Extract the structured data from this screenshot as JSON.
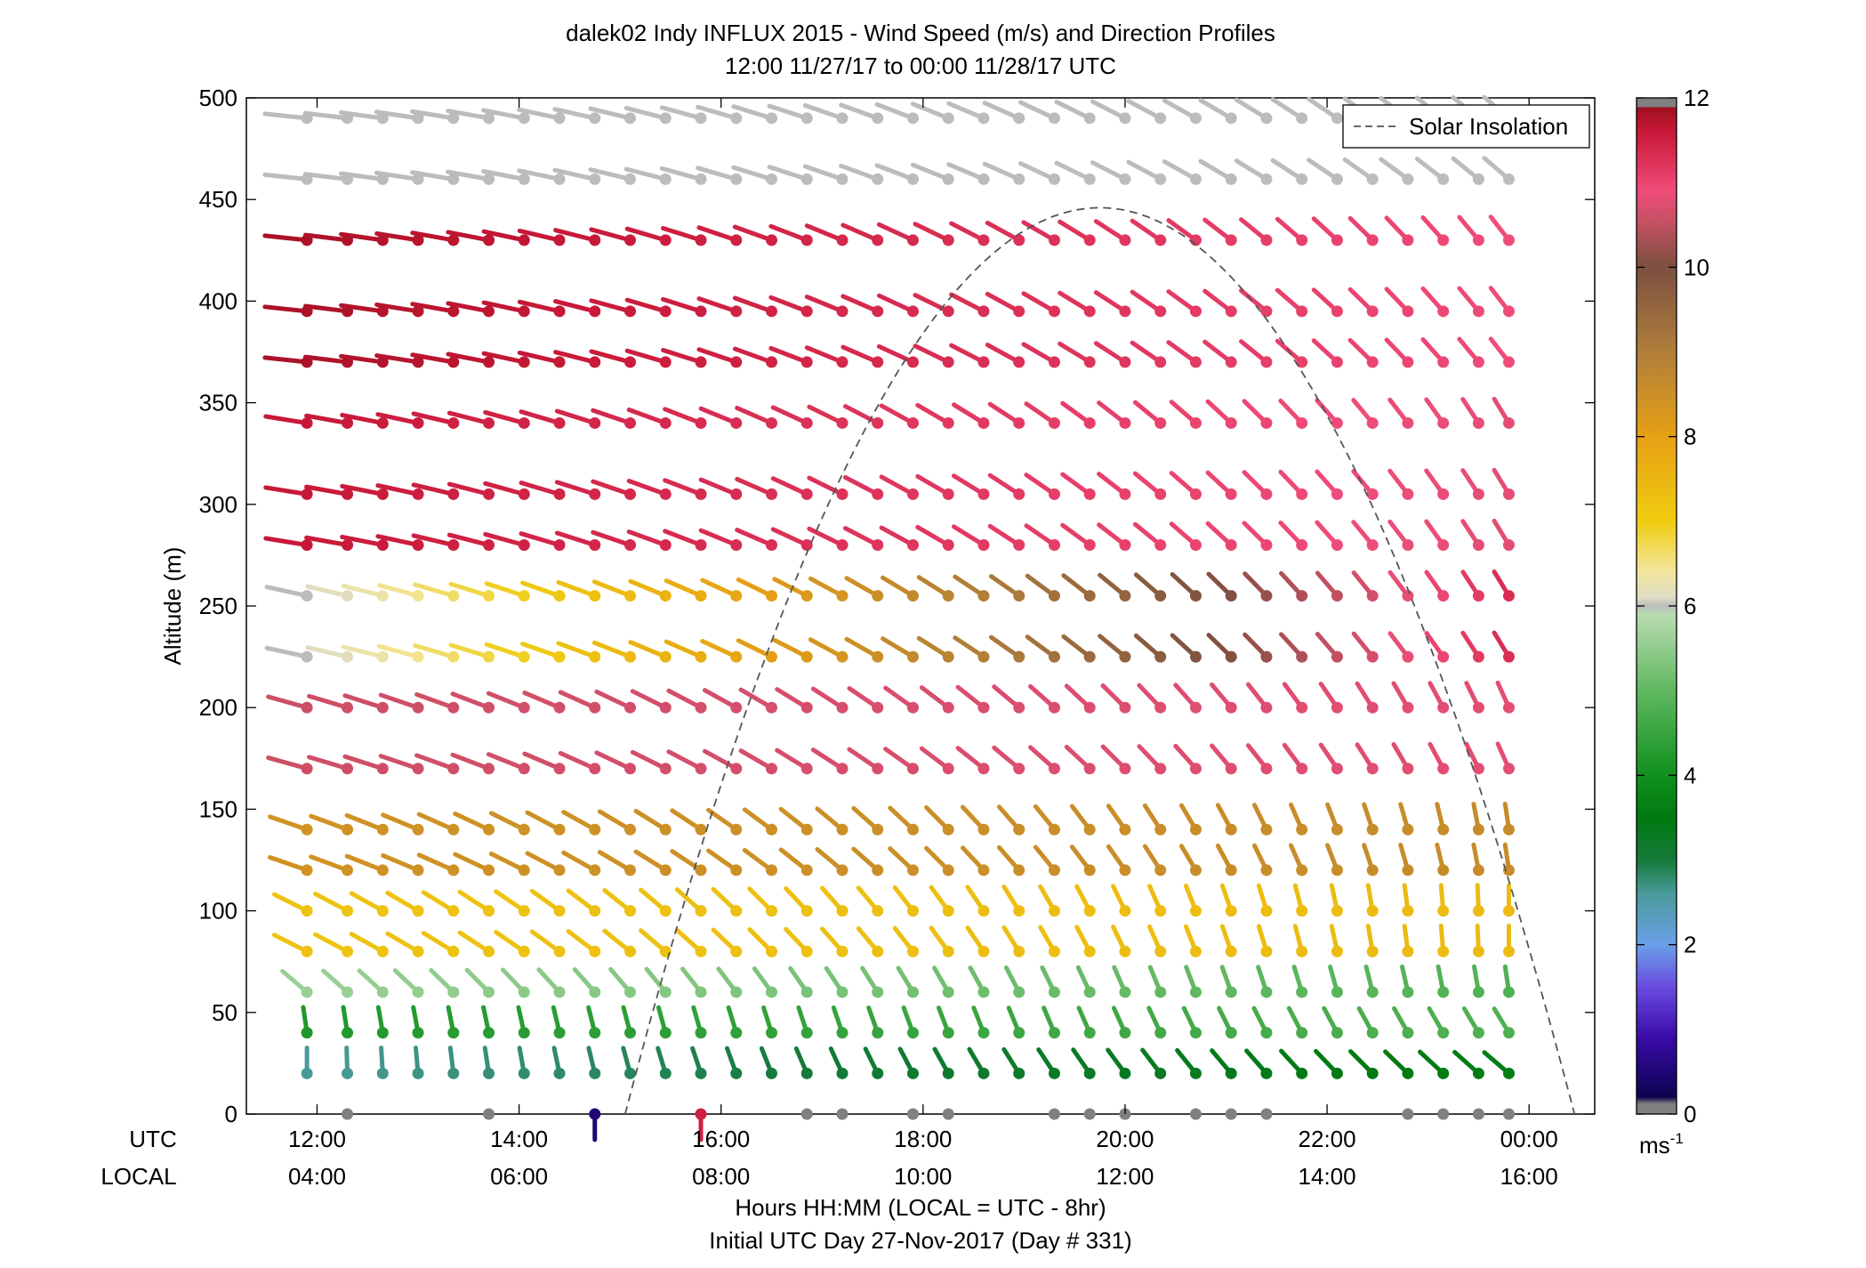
{
  "chart_data": {
    "type": "wind_barb_profile",
    "title": "dalek02 Indy INFLUX 2015 - Wind Speed (m/s) and Direction Profiles",
    "subtitle": "12:00 11/27/17 to 00:00 11/28/17  UTC",
    "ylabel": "Altitude (m)",
    "xlabel_line1": "Hours HH:MM  (LOCAL = UTC - 8hr)",
    "xlabel_line2": "Initial UTC Day 27-Nov-2017 (Day # 331)",
    "utc_row_label": "UTC",
    "local_row_label": "LOCAL",
    "xlim_hours": [
      11.3,
      24.65
    ],
    "ylim": [
      0,
      500
    ],
    "yticks": [
      0,
      50,
      100,
      150,
      200,
      250,
      300,
      350,
      400,
      450,
      500
    ],
    "ytick_labels": [
      "0",
      "50",
      "100",
      "150",
      "200",
      "250",
      "300",
      "350",
      "400",
      "450",
      "500"
    ],
    "xticks_hours": [
      12,
      14,
      16,
      18,
      20,
      22,
      24
    ],
    "xtick_utc_labels": [
      "12:00",
      "14:00",
      "16:00",
      "18:00",
      "20:00",
      "22:00",
      "00:00"
    ],
    "xtick_local_labels": [
      "04:00",
      "06:00",
      "08:00",
      "10:00",
      "12:00",
      "14:00",
      "16:00"
    ],
    "legend": {
      "label": "Solar Insolation",
      "position": "top-right",
      "style": "dashed",
      "color": "#555555"
    },
    "solar_insolation_curve": {
      "start_hour": 15.05,
      "peak_hour": 19.75,
      "end_hour": 24.45,
      "peak_altitude": 446
    },
    "colorbar": {
      "min": 0,
      "max": 12,
      "ticks": [
        0,
        2,
        4,
        6,
        8,
        10,
        12
      ],
      "tick_labels": [
        "0",
        "2",
        "4",
        "6",
        "8",
        "10",
        "12"
      ],
      "units_label": "ms",
      "units_exponent": "-1",
      "stops": [
        {
          "v": 0.0,
          "c": "#808080"
        },
        {
          "v": 0.12,
          "c": "#808080"
        },
        {
          "v": 0.2,
          "c": "#0c0450"
        },
        {
          "v": 0.9,
          "c": "#3a0aa8"
        },
        {
          "v": 1.5,
          "c": "#6a4ce0"
        },
        {
          "v": 2.0,
          "c": "#6aa0e8"
        },
        {
          "v": 2.6,
          "c": "#4a9a9a"
        },
        {
          "v": 3.0,
          "c": "#147a3a"
        },
        {
          "v": 3.5,
          "c": "#007a10"
        },
        {
          "v": 4.0,
          "c": "#10901e"
        },
        {
          "v": 5.0,
          "c": "#60b860"
        },
        {
          "v": 5.9,
          "c": "#b8dcb0"
        },
        {
          "v": 6.0,
          "c": "#bcbcbc"
        },
        {
          "v": 6.1,
          "c": "#dedcc4"
        },
        {
          "v": 6.4,
          "c": "#f2e6a0"
        },
        {
          "v": 7.0,
          "c": "#f0cc10"
        },
        {
          "v": 8.0,
          "c": "#e6a014"
        },
        {
          "v": 9.0,
          "c": "#b07e3a"
        },
        {
          "v": 10.0,
          "c": "#7c5040"
        },
        {
          "v": 10.5,
          "c": "#c05060"
        },
        {
          "v": 10.9,
          "c": "#f04c7a"
        },
        {
          "v": 11.6,
          "c": "#c81838"
        },
        {
          "v": 11.88,
          "c": "#a01020"
        },
        {
          "v": 11.9,
          "c": "#808080"
        },
        {
          "v": 12.0,
          "c": "#808080"
        }
      ]
    },
    "levels": [
      0,
      20,
      40,
      60,
      80,
      100,
      120,
      140,
      170,
      200,
      225,
      255,
      280,
      305,
      340,
      370,
      395,
      430,
      460,
      490
    ],
    "times": [
      11.9,
      12.3,
      12.65,
      13.0,
      13.35,
      13.7,
      14.05,
      14.4,
      14.75,
      15.1,
      15.45,
      15.8,
      16.15,
      16.5,
      16.85,
      17.2,
      17.55,
      17.9,
      18.25,
      18.6,
      18.95,
      19.3,
      19.65,
      20.0,
      20.35,
      20.7,
      21.05,
      21.4,
      21.75,
      22.1,
      22.45,
      22.8,
      23.15,
      23.5,
      23.8
    ],
    "profiles": [
      {
        "alt_min": 0,
        "alt_max": 0,
        "speed": [
          null,
          0.1,
          null,
          null,
          null,
          0.1,
          null,
          null,
          0.5,
          null,
          null,
          11.5,
          null,
          null,
          0.1,
          0.1,
          null,
          0.1,
          0.1,
          null,
          null,
          0.1,
          0.1,
          0.1,
          null,
          0.1,
          0.1,
          0.1,
          null,
          null,
          null,
          0.1,
          0.1,
          0.1,
          0.1
        ],
        "direction": [
          null,
          0,
          null,
          null,
          null,
          0,
          null,
          null,
          0,
          null,
          null,
          0,
          null,
          null,
          300,
          300,
          null,
          300,
          320,
          null,
          null,
          240,
          200,
          330,
          null,
          0,
          0,
          0,
          null,
          null,
          null,
          300,
          0,
          0,
          70
        ]
      },
      {
        "alt_min": 20,
        "alt_max": 20,
        "speed_from": 2.6,
        "speed_to": 3.6,
        "dir_from": 180,
        "dir_to": 215
      },
      {
        "alt_min": 40,
        "alt_max": 40,
        "speed_from": 4.2,
        "speed_to": 4.8,
        "dir_from": 185,
        "dir_to": 200
      },
      {
        "alt_min": 60,
        "alt_max": 60,
        "speed_from": 5.6,
        "speed_to": 4.8,
        "dir_from": 215,
        "dir_to": 185
      },
      {
        "alt_min": 80,
        "alt_max": 100,
        "speed_from": 7.2,
        "speed_to": 7.4,
        "dir_from": 230,
        "dir_to": 180
      },
      {
        "alt_min": 120,
        "alt_max": 140,
        "speed_from": 8.4,
        "speed_to": 8.6,
        "dir_from": 240,
        "dir_to": 185
      },
      {
        "alt_min": 170,
        "alt_max": 200,
        "speed_from": 10.6,
        "speed_to": 10.8,
        "dir_from": 245,
        "dir_to": 195
      },
      {
        "alt_min": 225,
        "alt_max": 255,
        "speed_from": 6.0,
        "speed_to": 11.3,
        "dir_from": 250,
        "dir_to": 200
      },
      {
        "alt_min": 280,
        "alt_max": 340,
        "speed_from": 11.6,
        "speed_to": 10.8,
        "dir_from": 255,
        "dir_to": 200
      },
      {
        "alt_min": 370,
        "alt_max": 430,
        "speed_from": 11.8,
        "speed_to": 10.9,
        "dir_from": 260,
        "dir_to": 205
      },
      {
        "alt_min": 460,
        "alt_max": 490,
        "speed_from": 6.0,
        "speed_to": 6.0,
        "dir_from": 260,
        "dir_to": 215
      }
    ]
  }
}
